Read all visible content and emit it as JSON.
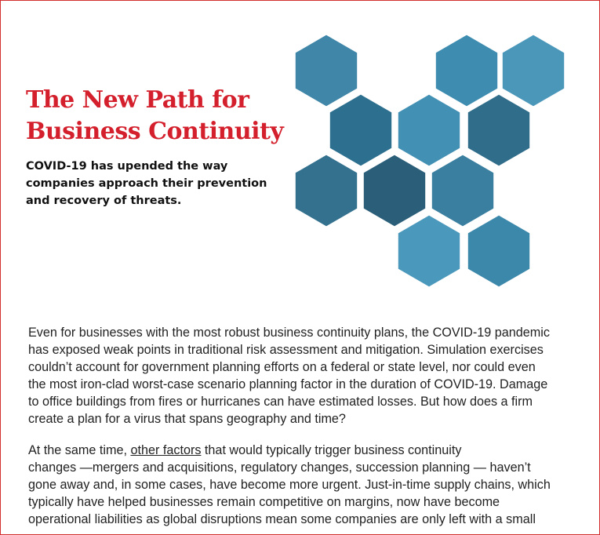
{
  "header": {
    "title_lines": [
      "The New Path for",
      "Business Continuity"
    ],
    "subtitle_lines": [
      "COVID-19 has upended the way",
      "companies approach their prevention",
      "and recovery of threats."
    ]
  },
  "body": {
    "paragraphs": [
      {
        "lines": [
          "Even for businesses with the most robust business continuity plans, the COVID-19 pandemic",
          "has exposed weak points in traditional risk assessment and mitigation. Simulation exercises",
          "couldn’t account for government planning efforts on a federal or state level, nor could even",
          "the most iron-clad worst-case scenario planning factor in the duration of COVID-19. Damage",
          "to office buildings from fires or hurricanes can have estimated losses. But how does a firm",
          "create a plan for a virus that spans geography and time?"
        ]
      },
      {
        "first_line": {
          "before": "At the same time, ",
          "link": "other factors",
          "after": " that would typically trigger business continuity"
        },
        "lines": [
          "changes —mergers and acquisitions, regulatory changes, succession planning — haven’t",
          "gone away and, in some cases, have become more urgent. Just-in-time supply chains, which",
          "typically have helped businesses remain competitive on margins, now have become",
          "operational liabilities as global disruptions mean some companies are only left with a small"
        ]
      }
    ]
  }
}
